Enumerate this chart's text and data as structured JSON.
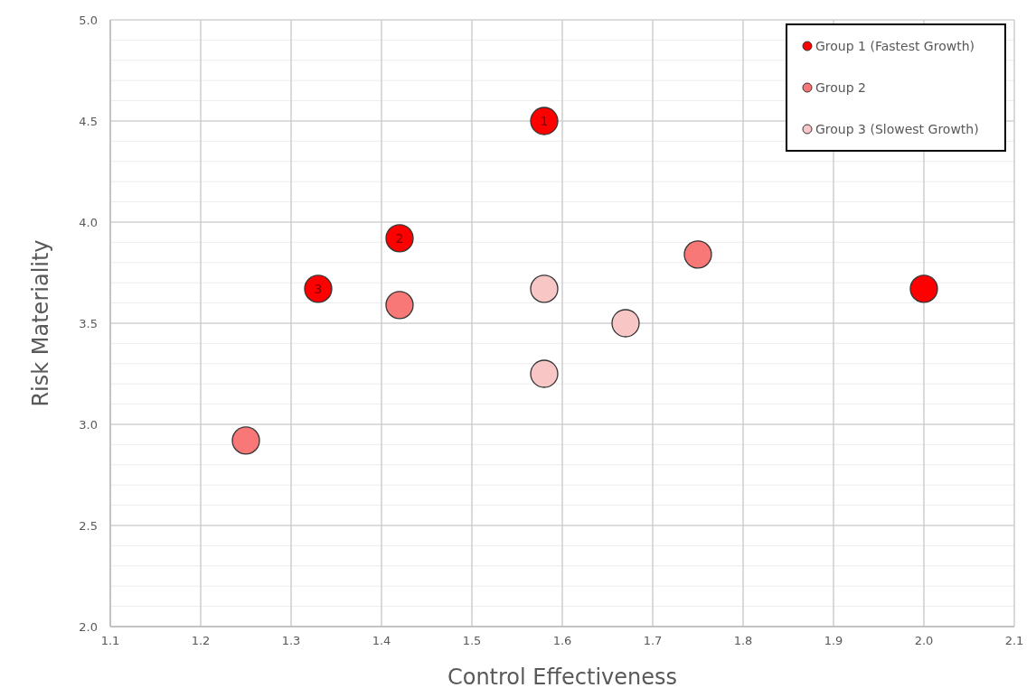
{
  "chart_data": {
    "type": "scatter",
    "xlabel": "Control Effectiveness",
    "ylabel": "Risk Materiality",
    "xlim": [
      1.1,
      2.1
    ],
    "ylim": [
      2,
      5
    ],
    "xticks": [
      1.1,
      1.2,
      1.3,
      1.4,
      1.5,
      1.6,
      1.7,
      1.8,
      1.9,
      {
        "value": 2,
        "label": "2.0"
      },
      2.1
    ],
    "yticks": [
      {
        "value": 2,
        "label": "2.0"
      },
      {
        "value": 2.1,
        "label": null
      },
      {
        "value": 2.2,
        "label": null
      },
      {
        "value": 2.3,
        "label": null
      },
      {
        "value": 2.4,
        "label": null
      },
      2.5,
      {
        "value": 2.6,
        "label": null
      },
      {
        "value": 2.7,
        "label": null
      },
      {
        "value": 2.8,
        "label": null
      },
      {
        "value": 2.9,
        "label": null
      },
      {
        "value": 3,
        "label": "3.0"
      },
      {
        "value": 3.1,
        "label": null
      },
      {
        "value": 3.2,
        "label": null
      },
      {
        "value": 3.3,
        "label": null
      },
      {
        "value": 3.4,
        "label": null
      },
      3.5,
      {
        "value": 3.6,
        "label": null
      },
      {
        "value": 3.7,
        "label": null
      },
      {
        "value": 3.8,
        "label": null
      },
      {
        "value": 3.9,
        "label": null
      },
      {
        "value": 4,
        "label": "4.0"
      },
      {
        "value": 4.1,
        "label": null
      },
      {
        "value": 4.2,
        "label": null
      },
      {
        "value": 4.3,
        "label": null
      },
      {
        "value": 4.4,
        "label": null
      },
      4.5,
      {
        "value": 4.6,
        "label": null
      },
      {
        "value": 4.7,
        "label": null
      },
      {
        "value": 4.8,
        "label": null
      },
      {
        "value": 4.9,
        "label": null
      },
      {
        "value": 5,
        "label": "5.0"
      }
    ],
    "grid": true,
    "legend": "top right",
    "marker": "circle",
    "series": [
      {
        "name": "Group 1 (Fastest Growth)",
        "color": "#ff0000",
        "x": [
          1.58,
          1.42,
          1.33,
          2.0
        ],
        "values": [
          4.5,
          3.92,
          3.67,
          3.67
        ]
      },
      {
        "name": "Group 2",
        "color": "#f87878",
        "x": [
          1.25,
          1.42,
          1.75
        ],
        "values": [
          2.92,
          3.59,
          3.84
        ]
      },
      {
        "name": "Group 3 (Slowest Growth)",
        "color": "#f9c6c6",
        "x": [
          1.58,
          1.67,
          1.58
        ],
        "values": [
          3.67,
          3.5,
          3.25
        ]
      }
    ],
    "annotations": [
      {
        "text": "1",
        "x": 1.58,
        "y": 4.5
      },
      {
        "text": "2",
        "x": 1.42,
        "y": 3.92
      },
      {
        "text": "3",
        "x": 1.33,
        "y": 3.67
      }
    ]
  }
}
